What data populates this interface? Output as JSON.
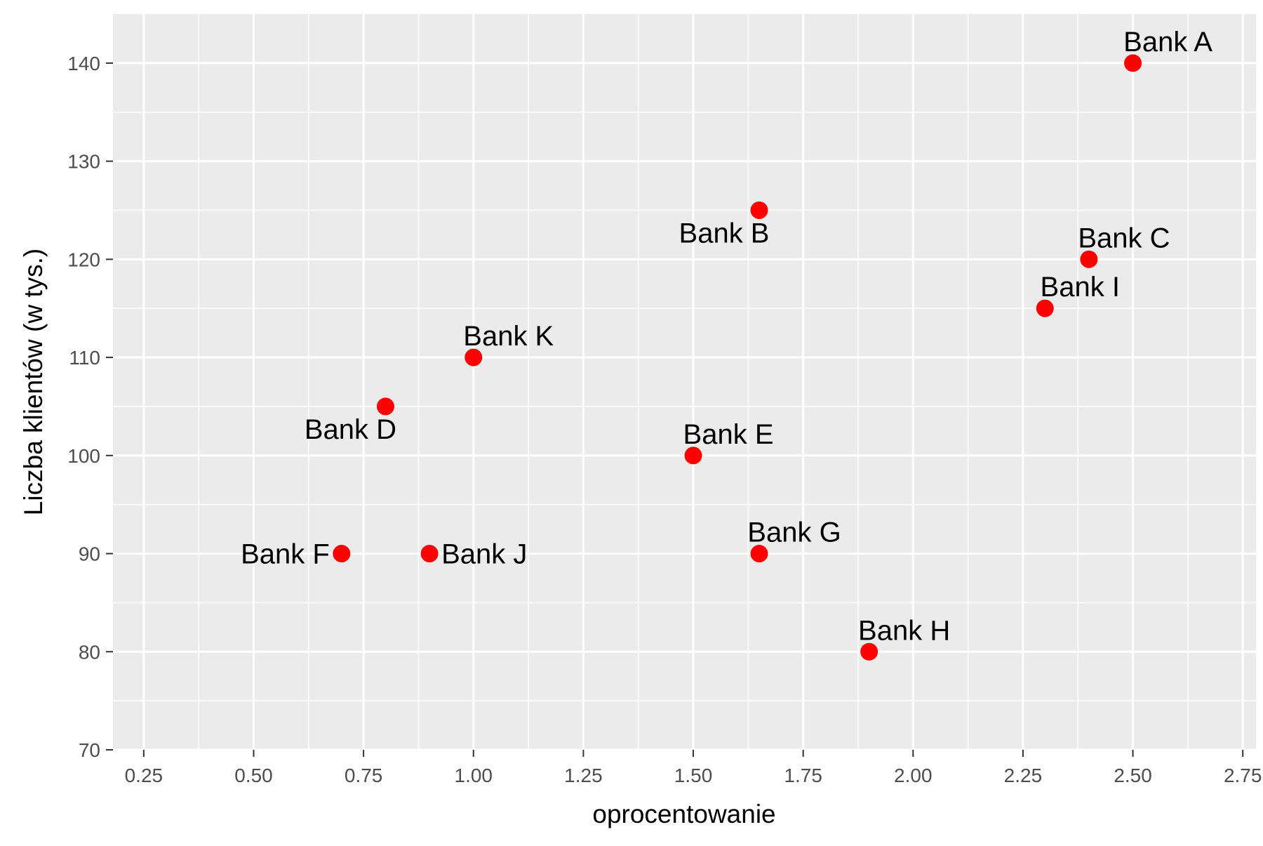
{
  "chart_data": {
    "type": "scatter",
    "title": "",
    "xlabel": "oprocentowanie",
    "ylabel": "Liczba klientów (w tys.)",
    "xlim": [
      0.18,
      2.78
    ],
    "ylim": [
      70,
      145
    ],
    "x_ticks": [
      0.25,
      0.5,
      0.75,
      1.0,
      1.25,
      1.5,
      1.75,
      2.0,
      2.25,
      2.5,
      2.75
    ],
    "x_tick_labels": [
      "0.25",
      "0.50",
      "0.75",
      "1.00",
      "1.25",
      "1.50",
      "1.75",
      "2.00",
      "2.25",
      "2.50",
      "2.75"
    ],
    "y_ticks": [
      70,
      80,
      90,
      100,
      110,
      120,
      130,
      140
    ],
    "y_tick_labels": [
      "70",
      "80",
      "90",
      "100",
      "110",
      "120",
      "130",
      "140"
    ],
    "grid": true,
    "point_color": "#ff0000",
    "background_color": "#ebebeb",
    "grid_color": "#ffffff",
    "points": [
      {
        "label": "Bank A",
        "x": 2.5,
        "y": 140,
        "label_position": "above-right"
      },
      {
        "label": "Bank B",
        "x": 1.65,
        "y": 125,
        "label_position": "below-left"
      },
      {
        "label": "Bank C",
        "x": 2.4,
        "y": 120,
        "label_position": "above-right"
      },
      {
        "label": "Bank D",
        "x": 0.8,
        "y": 105,
        "label_position": "below-left"
      },
      {
        "label": "Bank E",
        "x": 1.5,
        "y": 100,
        "label_position": "above-right"
      },
      {
        "label": "Bank F",
        "x": 0.7,
        "y": 90,
        "label_position": "left"
      },
      {
        "label": "Bank G",
        "x": 1.65,
        "y": 90,
        "label_position": "above-right"
      },
      {
        "label": "Bank H",
        "x": 1.9,
        "y": 80,
        "label_position": "above-right"
      },
      {
        "label": "Bank I",
        "x": 2.3,
        "y": 115,
        "label_position": "above-right"
      },
      {
        "label": "Bank J",
        "x": 0.9,
        "y": 90,
        "label_position": "right"
      },
      {
        "label": "Bank K",
        "x": 1.0,
        "y": 110,
        "label_position": "above-right"
      }
    ]
  }
}
